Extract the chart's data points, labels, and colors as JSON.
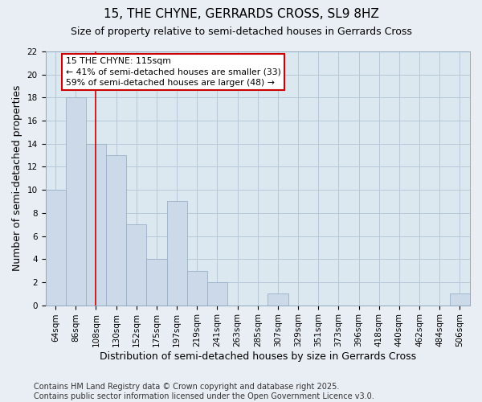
{
  "title": "15, THE CHYNE, GERRARDS CROSS, SL9 8HZ",
  "subtitle": "Size of property relative to semi-detached houses in Gerrards Cross",
  "xlabel": "Distribution of semi-detached houses by size in Gerrards Cross",
  "ylabel": "Number of semi-detached properties",
  "categories": [
    "64sqm",
    "86sqm",
    "108sqm",
    "130sqm",
    "152sqm",
    "175sqm",
    "197sqm",
    "219sqm",
    "241sqm",
    "263sqm",
    "285sqm",
    "307sqm",
    "329sqm",
    "351sqm",
    "373sqm",
    "396sqm",
    "418sqm",
    "440sqm",
    "462sqm",
    "484sqm",
    "506sqm"
  ],
  "values": [
    10,
    18,
    14,
    13,
    7,
    4,
    9,
    3,
    2,
    0,
    0,
    1,
    0,
    0,
    0,
    0,
    0,
    0,
    0,
    0,
    1
  ],
  "bar_color": "#ccd9e8",
  "bar_edge_color": "#9ab0c8",
  "vline_x": 2.0,
  "vline_color": "#cc0000",
  "vline_label_title": "15 THE CHYNE: 115sqm",
  "vline_label_line2": "← 41% of semi-detached houses are smaller (33)",
  "vline_label_line3": "59% of semi-detached houses are larger (48) →",
  "annotation_box_color": "#cc0000",
  "ylim": [
    0,
    22
  ],
  "yticks": [
    0,
    2,
    4,
    6,
    8,
    10,
    12,
    14,
    16,
    18,
    20,
    22
  ],
  "footnote": "Contains HM Land Registry data © Crown copyright and database right 2025.\nContains public sector information licensed under the Open Government Licence v3.0.",
  "background_color": "#e8eef4",
  "plot_bg_color": "#dce8f0",
  "grid_color": "#b8c8d8",
  "title_fontsize": 11,
  "subtitle_fontsize": 9,
  "label_fontsize": 9,
  "tick_fontsize": 7.5,
  "footnote_fontsize": 7
}
